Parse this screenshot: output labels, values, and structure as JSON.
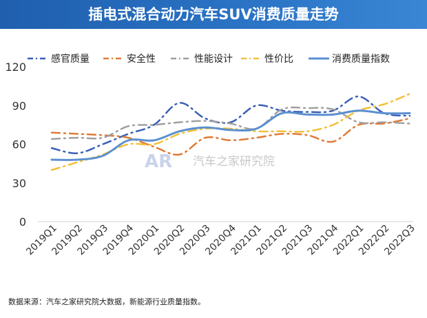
{
  "chart_data": {
    "type": "line",
    "title": "插电式混合动力汽车SUV消费质量走势",
    "categories": [
      "2019Q1",
      "2019Q2",
      "2019Q3",
      "2019Q4",
      "2020Q1",
      "2020Q2",
      "2020Q3",
      "2020Q4",
      "2021Q1",
      "2021Q2",
      "2021Q3",
      "2021Q4",
      "2022Q1",
      "2022Q2",
      "2022Q3"
    ],
    "ylim": [
      0,
      120
    ],
    "yticks": [
      0,
      30,
      60,
      90,
      120
    ],
    "grid": false,
    "legend": "top",
    "series": [
      {
        "name": "感官质量",
        "color": "#3a5fb8",
        "dash": "12 6 2 6",
        "values": [
          57,
          53,
          60,
          68,
          75,
          92,
          80,
          77,
          90,
          86,
          85,
          86,
          97,
          84,
          82
        ]
      },
      {
        "name": "安全性",
        "color": "#e07a35",
        "dash": "12 6 2 6",
        "values": [
          69,
          68,
          67,
          65,
          58,
          52,
          65,
          63,
          65,
          68,
          67,
          62,
          75,
          76,
          80
        ]
      },
      {
        "name": "性能设计",
        "color": "#a0a0a0",
        "dash": "12 6 2 6",
        "values": [
          64,
          65,
          65,
          74,
          75,
          77,
          78,
          76,
          72,
          87,
          88,
          87,
          77,
          77,
          76
        ]
      },
      {
        "name": "性价比",
        "color": "#f2c037",
        "dash": "12 6 2 6",
        "values": [
          40,
          46,
          52,
          60,
          60,
          68,
          72,
          72,
          70,
          70,
          70,
          75,
          86,
          91,
          99
        ]
      },
      {
        "name": "消费质量指数",
        "color": "#5b8fd0",
        "dash": "",
        "values": [
          48,
          48,
          51,
          63,
          63,
          70,
          73,
          71,
          72,
          84,
          83,
          83,
          86,
          84,
          84
        ]
      }
    ]
  },
  "watermark": "汽车之家研究院",
  "footer": "数据来源：汽车之家研究院大数据，新能源行业质量指数。"
}
